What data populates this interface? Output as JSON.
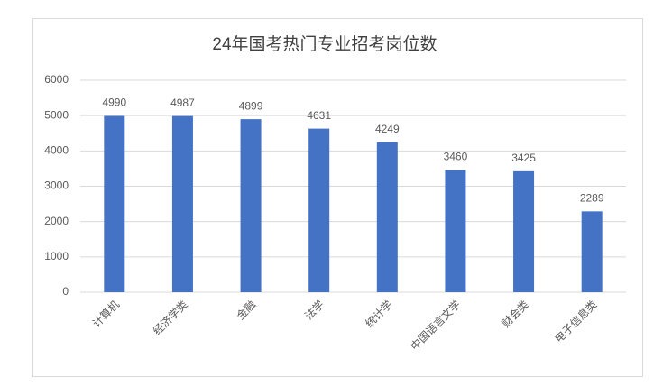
{
  "chart_data": {
    "type": "bar",
    "title": "24年国考热门专业招考岗位数",
    "categories": [
      "计算机",
      "经济学类",
      "金融",
      "法学",
      "统计学",
      "中国语言文学",
      "财会类",
      "电子信息类"
    ],
    "values": [
      4990,
      4987,
      4899,
      4631,
      4249,
      3460,
      3425,
      2289
    ],
    "color": "#4472c4",
    "ylim": [
      0,
      6000
    ],
    "yticks": [
      0,
      1000,
      2000,
      3000,
      4000,
      5000,
      6000
    ],
    "grid": true
  }
}
